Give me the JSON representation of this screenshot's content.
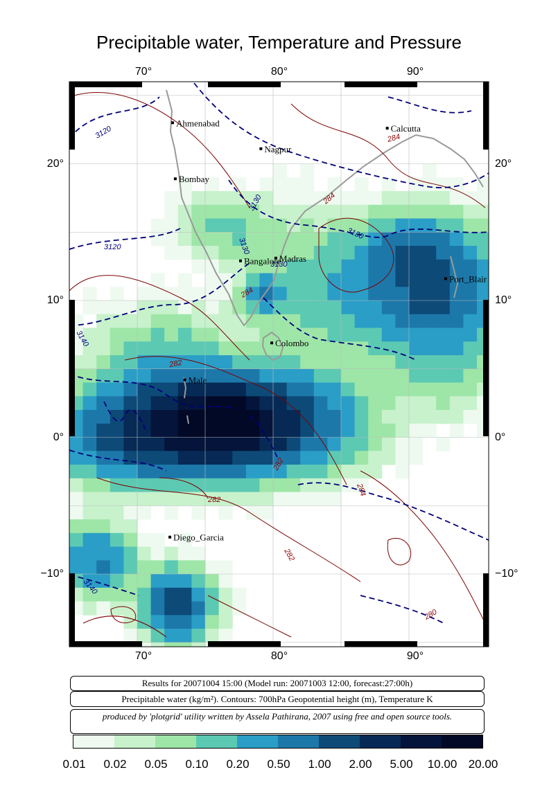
{
  "title": "Precipitable water, Temperature and Pressure",
  "axes": {
    "lon_ticks": [
      "70°",
      "80°",
      "90°"
    ],
    "lat_ticks": [
      "20°",
      "10°",
      "0°",
      "−10°"
    ]
  },
  "cities": [
    {
      "name": "Ahmenabad",
      "lon": 72.6,
      "lat": 23.0
    },
    {
      "name": "Calcutta",
      "lon": 88.4,
      "lat": 22.6
    },
    {
      "name": "Nagpur",
      "lon": 79.1,
      "lat": 21.1
    },
    {
      "name": "Bombay",
      "lon": 72.8,
      "lat": 18.9
    },
    {
      "name": "Madras",
      "lon": 80.2,
      "lat": 13.1
    },
    {
      "name": "Bangalore",
      "lon": 77.6,
      "lat": 12.9
    },
    {
      "name": "Port_Blair",
      "lon": 92.7,
      "lat": 11.6
    },
    {
      "name": "Colombo",
      "lon": 79.9,
      "lat": 6.9
    },
    {
      "name": "Male",
      "lon": 73.5,
      "lat": 4.2
    },
    {
      "name": "Diego_Garcia",
      "lon": 72.4,
      "lat": -7.3
    }
  ],
  "contour_labels": [
    {
      "text": "3120",
      "color": "#000080"
    },
    {
      "text": "3130",
      "color": "#000080"
    },
    {
      "text": "3140",
      "color": "#000080"
    },
    {
      "text": "280",
      "color": "#8b0000"
    },
    {
      "text": "282",
      "color": "#8b0000"
    },
    {
      "text": "284",
      "color": "#8b0000"
    }
  ],
  "results_text": "Results for 20071004 15:00 (Model run: 20071003 12:00, forecast:27:00h)",
  "legend_text": "Precipitable water (kg/m²).  Contours: 700hPa Geopotential height (m), Temperature K",
  "credit_text": "produced by 'plotgrid' utility written by Assela Pathirana, 2007 using free and open source tools.",
  "colorbar": {
    "labels": [
      "0.01",
      "0.02",
      "0.05",
      "0.10",
      "0.20",
      "0.50",
      "1.00",
      "2.00",
      "5.00",
      "10.00",
      "20.00"
    ],
    "colors": [
      "#eefaf0",
      "#c7f2cc",
      "#9ee6a7",
      "#5cc9b3",
      "#2a9ec6",
      "#1d78aa",
      "#0d4a78",
      "#062a55",
      "#04143a",
      "#020926"
    ]
  },
  "colors": {
    "height_contour": "#00007a",
    "temperature_contour": "#7a0000",
    "coast": "#999999"
  }
}
